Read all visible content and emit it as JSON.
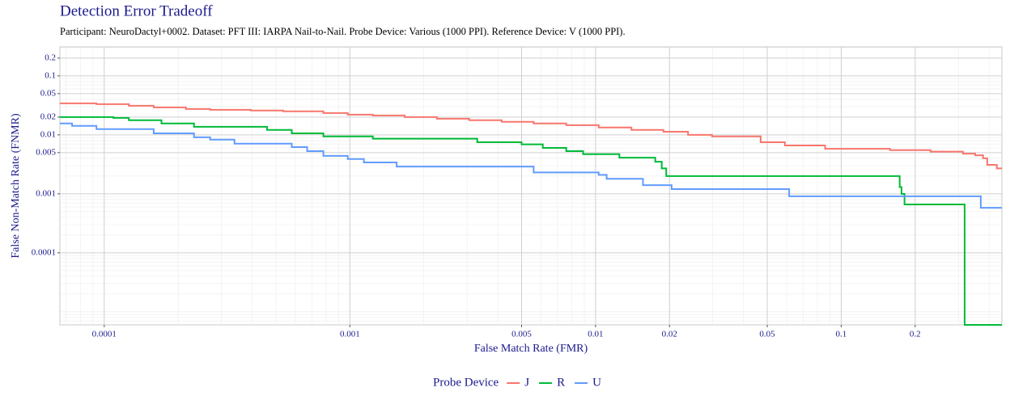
{
  "chart_data": {
    "type": "line",
    "step": true,
    "title": "Detection Error Tradeoff",
    "subtitle": "Participant: NeuroDactyl+0002. Dataset: PFT III: IARPA Nail-to-Nail. Probe Device: Various (1000 PPI). Reference Device: V (1000 PPI).",
    "x_label": "False Match Rate (FMR)",
    "y_label": "False Non-Match Rate (FNMR)",
    "legend_title": "Probe Device",
    "legend_position": "bottom",
    "x_log": true,
    "y_log": true,
    "grid": true,
    "xlim": [
      6.6e-05,
      0.451
    ],
    "ylim": [
      6e-06,
      0.31
    ],
    "xticks": [
      0.0001,
      0.001,
      0.005,
      0.01,
      0.02,
      0.05,
      0.1,
      0.2
    ],
    "yticks": [
      0.0001,
      0.001,
      0.005,
      0.01,
      0.02,
      0.05,
      0.1,
      0.2
    ],
    "series": [
      {
        "name": "J",
        "color": "#F8766D",
        "x": [
          6.6e-05,
          9.3e-05,
          0.000126,
          0.000159,
          0.000215,
          0.00027,
          0.000395,
          0.000535,
          0.00078,
          0.00098,
          0.00124,
          0.00167,
          0.00226,
          0.00306,
          0.00415,
          0.0056,
          0.0076,
          0.0103,
          0.014,
          0.0189,
          0.0238,
          0.0298,
          0.047,
          0.059,
          0.086,
          0.158,
          0.231,
          0.313,
          0.351,
          0.378,
          0.393,
          0.43
        ],
        "values": [
          0.0342,
          0.0332,
          0.0311,
          0.0292,
          0.0274,
          0.0266,
          0.0258,
          0.025,
          0.0234,
          0.022,
          0.0213,
          0.02,
          0.0188,
          0.0177,
          0.0166,
          0.0156,
          0.0146,
          0.0133,
          0.0121,
          0.0113,
          0.01,
          0.0094,
          0.0075,
          0.0066,
          0.0058,
          0.0055,
          0.0052,
          0.0048,
          0.0045,
          0.004,
          0.0031,
          0.0027
        ]
      },
      {
        "name": "R",
        "color": "#00BA38",
        "x": [
          6.6e-05,
          0.000109,
          0.000126,
          0.000171,
          0.000232,
          0.00046,
          0.00058,
          0.00078,
          0.00124,
          0.0033,
          0.005,
          0.0061,
          0.0076,
          0.0089,
          0.0125,
          0.0175,
          0.0186,
          0.0194,
          0.173,
          0.176,
          0.181,
          0.318
        ],
        "values": [
          0.02,
          0.0194,
          0.0177,
          0.0156,
          0.0137,
          0.0121,
          0.0106,
          0.0094,
          0.0086,
          0.0075,
          0.0069,
          0.006,
          0.0053,
          0.0047,
          0.0041,
          0.0035,
          0.0027,
          0.002,
          0.0013,
          0.001,
          0.00066,
          0
        ]
      },
      {
        "name": "U",
        "color": "#619CFF",
        "x": [
          6.6e-05,
          7.4e-05,
          9.3e-05,
          0.000159,
          0.000232,
          0.00027,
          0.000339,
          0.00058,
          0.00067,
          0.00078,
          0.00098,
          0.00114,
          0.00155,
          0.0056,
          0.0103,
          0.0111,
          0.0156,
          0.0204,
          0.0614,
          0.37
        ],
        "values": [
          0.0156,
          0.0142,
          0.0125,
          0.0106,
          0.0091,
          0.0083,
          0.0071,
          0.0062,
          0.0053,
          0.0044,
          0.0039,
          0.0034,
          0.0029,
          0.0023,
          0.0021,
          0.0018,
          0.0014,
          0.0012,
          0.00091,
          0.00058
        ]
      }
    ]
  }
}
